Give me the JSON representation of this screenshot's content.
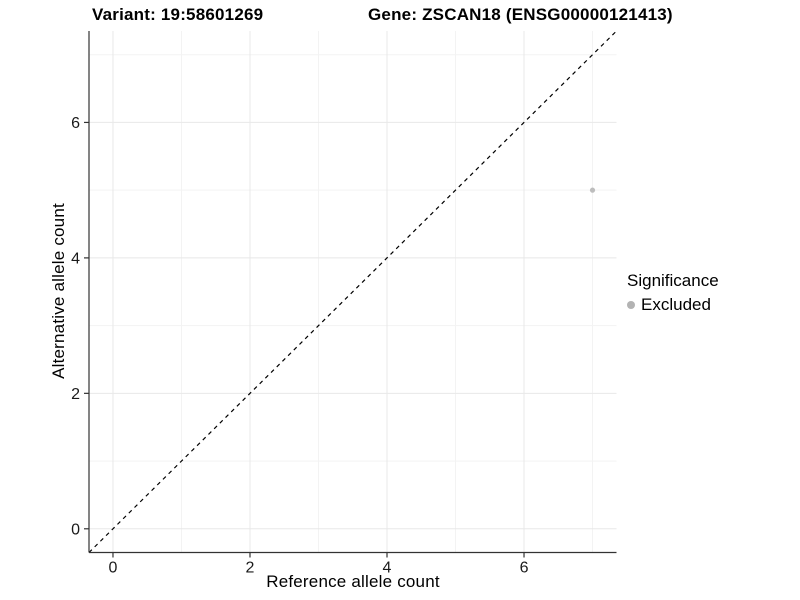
{
  "chart_data": {
    "type": "scatter",
    "title_left": "Variant: 19:58601269",
    "title_right": "Gene: ZSCAN18 (ENSG00000121413)",
    "xlabel": "Reference allele count",
    "ylabel": "Alternative allele count",
    "xlim": [
      -0.35,
      7.35
    ],
    "ylim": [
      -0.35,
      7.35
    ],
    "x_ticks": [
      0,
      2,
      4,
      6
    ],
    "y_ticks": [
      0,
      2,
      4,
      6
    ],
    "x_minor_gridlines": [
      1,
      3,
      5,
      7
    ],
    "y_minor_gridlines": [
      1,
      3,
      5,
      7
    ],
    "grid": true,
    "points": [
      {
        "x": 7,
        "y": 5,
        "series": "Excluded"
      }
    ],
    "reference_line": {
      "type": "identity",
      "slope": 1,
      "intercept": 0,
      "style": "dashed"
    },
    "legend": {
      "title": "Significance",
      "position": "right",
      "items": [
        {
          "label": "Excluded",
          "color": "#b3b3b3"
        }
      ]
    },
    "colors": {
      "point": "#bdbdbd",
      "major_grid": "#e8e8e8",
      "minor_grid": "#f3f3f3",
      "axis_line": "#333333",
      "tick_label": "#1a1a1a",
      "reference_line": "#000000",
      "background": "#ffffff"
    }
  }
}
